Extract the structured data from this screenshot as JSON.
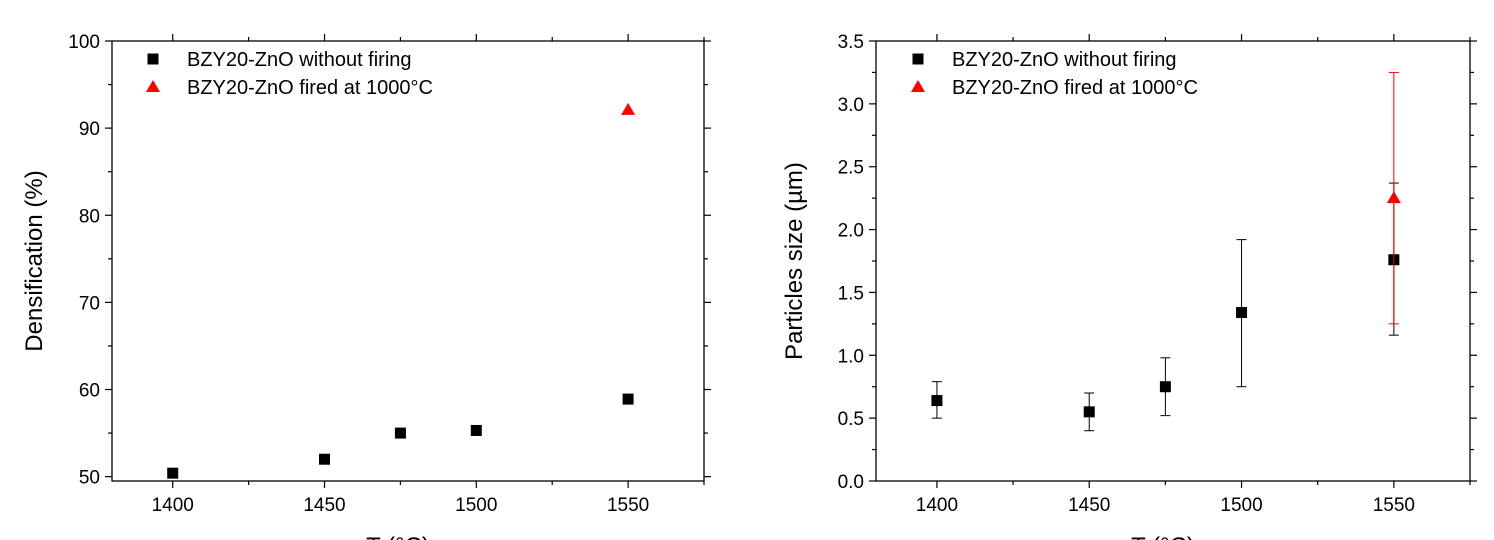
{
  "chart_data": [
    {
      "type": "scatter",
      "title": "",
      "xlabel": "T (°C)",
      "ylabel": "Densification (%)",
      "xlim": [
        1380,
        1575
      ],
      "ylim": [
        49.5,
        100
      ],
      "xticks": [
        1400,
        1450,
        1500,
        1550
      ],
      "yticks": [
        50,
        60,
        70,
        80,
        90,
        100
      ],
      "grid": false,
      "legend_position": "top-left",
      "series": [
        {
          "name": "BZY20-ZnO without firing",
          "marker": "square",
          "color": "#000000",
          "x": [
            1400,
            1450,
            1475,
            1500,
            1550
          ],
          "y": [
            50.4,
            52.0,
            55.0,
            55.3,
            58.9
          ]
        },
        {
          "name": "BZY20-ZnO fired at 1000°C",
          "marker": "triangle",
          "color": "#ff0000",
          "x": [
            1550
          ],
          "y": [
            92.1
          ]
        }
      ]
    },
    {
      "type": "scatter",
      "title": "",
      "xlabel": "T (°C)",
      "ylabel": "Particles size (µm)",
      "xlim": [
        1380,
        1575
      ],
      "ylim": [
        0,
        3.5
      ],
      "xticks": [
        1400,
        1450,
        1500,
        1550
      ],
      "yticks": [
        0.0,
        0.5,
        1.0,
        1.5,
        2.0,
        2.5,
        3.0,
        3.5
      ],
      "grid": false,
      "legend_position": "top-left",
      "series": [
        {
          "name": "BZY20-ZnO without firing",
          "marker": "square",
          "color": "#000000",
          "x": [
            1400,
            1450,
            1475,
            1500,
            1550
          ],
          "y": [
            0.64,
            0.55,
            0.75,
            1.34,
            1.76
          ],
          "err_low": [
            0.5,
            0.4,
            0.52,
            0.75,
            1.16
          ],
          "err_high": [
            0.79,
            0.7,
            0.98,
            1.92,
            2.37
          ]
        },
        {
          "name": "BZY20-ZnO fired at 1000°C",
          "marker": "triangle",
          "color": "#ff0000",
          "x": [
            1550
          ],
          "y": [
            2.25
          ],
          "err_low": [
            1.25
          ],
          "err_high": [
            3.25
          ]
        }
      ]
    }
  ]
}
